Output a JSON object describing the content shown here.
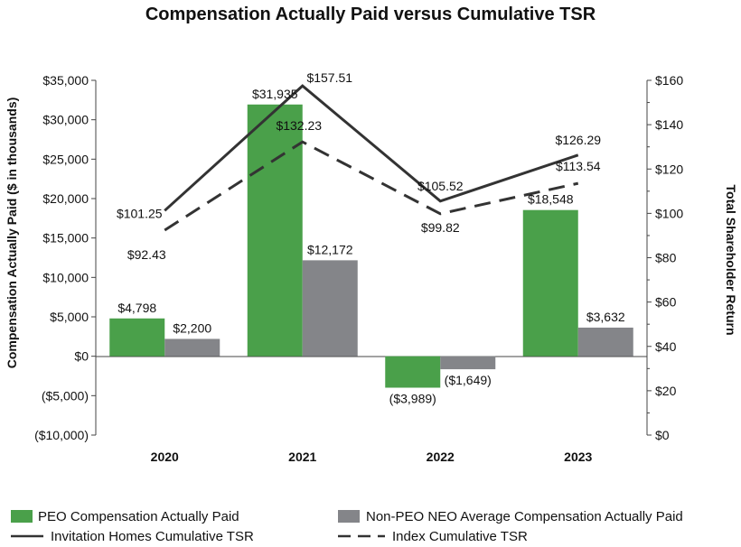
{
  "chart_data": {
    "type": "bar",
    "title": "Compensation Actually Paid versus Cumulative TSR",
    "categories": [
      "2020",
      "2021",
      "2022",
      "2023"
    ],
    "ylabel": "Compensation Actually Paid ($ in thousands)",
    "y2label": "Total Shareholder Return",
    "ylim": [
      -10000,
      35000
    ],
    "y2lim": [
      0,
      160
    ],
    "yticks": [
      35000,
      30000,
      25000,
      20000,
      15000,
      10000,
      5000,
      0,
      -5000,
      -10000
    ],
    "ytick_labels": [
      "$35,000",
      "$30,000",
      "$25,000",
      "$20,000",
      "$15,000",
      "$10,000",
      "$5,000",
      "$0",
      "($5,000)",
      "($10,000)"
    ],
    "y2ticks": [
      160,
      140,
      120,
      100,
      80,
      60,
      40,
      20,
      0
    ],
    "y2tick_labels": [
      "$160",
      "$140",
      "$120",
      "$100",
      "$80",
      "$60",
      "$40",
      "$20",
      "$0"
    ],
    "grid": false,
    "legend_position": "bottom",
    "series": [
      {
        "name": "PEO Compensation Actually Paid",
        "kind": "bar",
        "axis": "left",
        "color": "#4aa04a",
        "values": [
          4798,
          31935,
          -3989,
          18548
        ],
        "labels": [
          "$4,798",
          "$31,935",
          "($3,989)",
          "$18,548"
        ]
      },
      {
        "name": "Non-PEO NEO Average Compensation Actually Paid",
        "kind": "bar",
        "axis": "left",
        "color": "#848589",
        "values": [
          2200,
          12172,
          -1649,
          3632
        ],
        "labels": [
          "$2,200",
          "$12,172",
          "($1,649)",
          "$3,632"
        ]
      },
      {
        "name": "Invitation Homes Cumulative TSR",
        "kind": "line",
        "axis": "right",
        "color": "#333333",
        "dash": "solid",
        "values": [
          101.25,
          157.51,
          105.52,
          126.29
        ],
        "labels": [
          "$101.25",
          "$157.51",
          "$105.52",
          "$126.29"
        ]
      },
      {
        "name": "Index Cumulative TSR",
        "kind": "line",
        "axis": "right",
        "color": "#333333",
        "dash": "dashed",
        "values": [
          92.43,
          132.23,
          99.82,
          113.54
        ],
        "labels": [
          "$92.43",
          "$132.23",
          "$99.82",
          "$113.54"
        ]
      }
    ]
  }
}
